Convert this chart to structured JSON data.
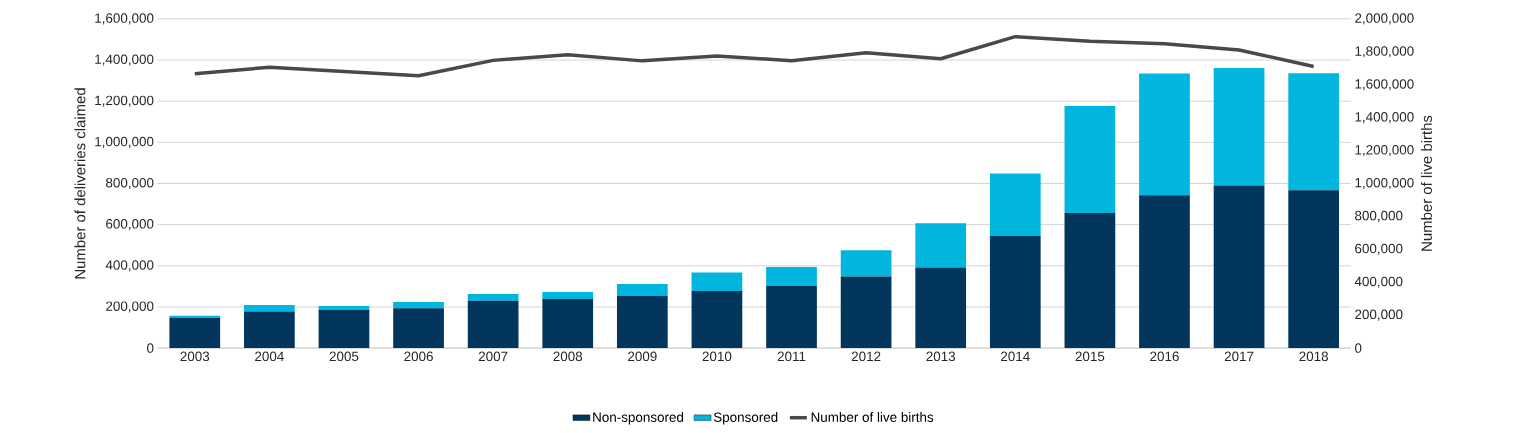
{
  "chart_data": {
    "type": "bar",
    "stacked": true,
    "ylabel": "Number of deliveries claimed",
    "y2label": "Number of live births",
    "categories": [
      "2003",
      "2004",
      "2005",
      "2006",
      "2007",
      "2008",
      "2009",
      "2010",
      "2011",
      "2012",
      "2013",
      "2014",
      "2015",
      "2016",
      "2017",
      "2018"
    ],
    "series": [
      {
        "name": "Non-sponsored",
        "color": "#03365c",
        "values": [
          148000,
          178000,
          185000,
          194000,
          230000,
          239000,
          254000,
          278000,
          302000,
          348000,
          392000,
          545000,
          656000,
          743000,
          790000,
          767000
        ]
      },
      {
        "name": "Sponsored",
        "color": "#00b5de",
        "values": [
          9000,
          31000,
          19000,
          30000,
          33000,
          33000,
          57000,
          89000,
          92000,
          127000,
          215000,
          303000,
          521000,
          591000,
          571000,
          569000
        ]
      },
      {
        "name": "Number of live births",
        "type": "line",
        "axis": "y2",
        "color": "#4a484c",
        "values": [
          1667000,
          1706000,
          1681000,
          1655000,
          1748000,
          1782000,
          1745000,
          1775000,
          1746000,
          1794000,
          1758000,
          1892000,
          1864000,
          1849000,
          1811000,
          1711000
        ]
      }
    ],
    "ylim": [
      0,
      1600000
    ],
    "yticks": [
      {
        "value": 0,
        "label": "0"
      },
      {
        "value": 200000,
        "label": "200,000"
      },
      {
        "value": 400000,
        "label": "400,000"
      },
      {
        "value": 600000,
        "label": "600,000"
      },
      {
        "value": 800000,
        "label": "800,000"
      },
      {
        "value": 1000000,
        "label": "1,000,000"
      },
      {
        "value": 1200000,
        "label": "1,200,000"
      },
      {
        "value": 1400000,
        "label": "1,400,000"
      },
      {
        "value": 1600000,
        "label": "1,600,000"
      }
    ],
    "y2lim": [
      0,
      2000000
    ],
    "y2ticks": [
      {
        "value": 0,
        "label": "0"
      },
      {
        "value": 200000,
        "label": "200,000"
      },
      {
        "value": 400000,
        "label": "400,000"
      },
      {
        "value": 600000,
        "label": "600,000"
      },
      {
        "value": 800000,
        "label": "800,000"
      },
      {
        "value": 1000000,
        "label": "1,000,000"
      },
      {
        "value": 1200000,
        "label": "1,200,000"
      },
      {
        "value": 1400000,
        "label": "1,400,000"
      },
      {
        "value": 1600000,
        "label": "1,600,000"
      },
      {
        "value": 1800000,
        "label": "1,800,000"
      },
      {
        "value": 2000000,
        "label": "2,000,000"
      }
    ],
    "grid": "y",
    "legend": "bottom"
  }
}
